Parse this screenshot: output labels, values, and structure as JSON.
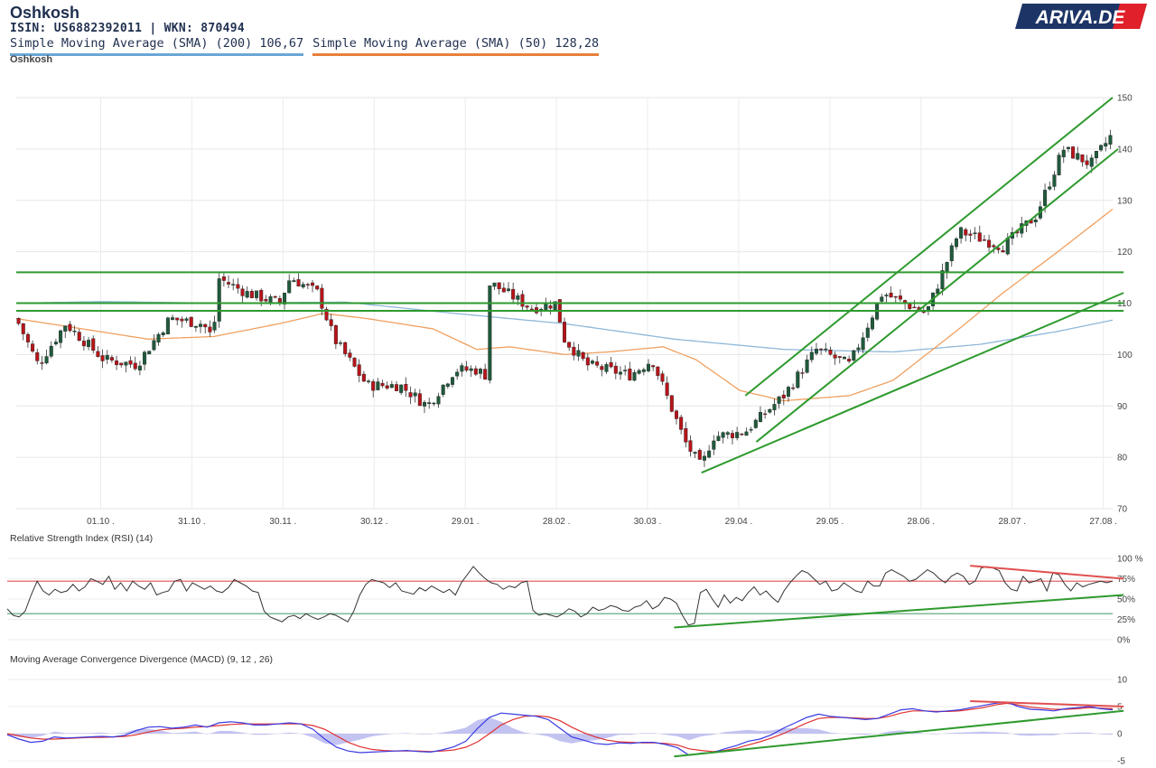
{
  "header": {
    "title": "Oshkosh",
    "ids": "ISIN: US6882392011  | WKN: 870494",
    "sma200_label": "Simple Moving Average (SMA) (200) 106,67",
    "sma50_label": "Simple Moving Average (SMA) (50) 128,28",
    "subtitle": "Oshkosh",
    "logo_text": "ARIVA.DE"
  },
  "colors": {
    "up": "#1f5a3c",
    "down": "#b8141a",
    "sma200": "#8fb8d9",
    "sma50": "#f0a060",
    "trend": "#2e9a2e",
    "rsi_upper": "#e05050",
    "rsi_lower": "#50a070",
    "macd": "#3a3ae0",
    "signal": "#e03030",
    "hist": "#b8b8f0",
    "logo_bg": "#1d3566",
    "logo_accent": "#e0202a"
  },
  "rsi": {
    "label": "Relative Strength Index (RSI) (14)"
  },
  "macd": {
    "label": "Moving Average Convergence Divergence (MACD) (9, 12 , 26)"
  },
  "chart_data": [
    {
      "type": "candlestick",
      "title": "Oshkosh",
      "x_tick_labels": [
        "01.10 .",
        "31.10 .",
        "30.11 .",
        "30.12 .",
        "29.01 .",
        "28.02 .",
        "30.03 .",
        "29.04 .",
        "29.05 .",
        "28.06 .",
        "28.07 .",
        "27.08 ."
      ],
      "y_ticks": [
        70,
        80,
        90,
        100,
        110,
        120,
        130,
        140,
        150
      ],
      "ylim": [
        70,
        150
      ],
      "grid": true,
      "price_path": [
        {
          "t": 0,
          "p": 107
        },
        {
          "t": 0.02,
          "p": 98
        },
        {
          "t": 0.045,
          "p": 106
        },
        {
          "t": 0.08,
          "p": 99
        },
        {
          "t": 0.11,
          "p": 98
        },
        {
          "t": 0.14,
          "p": 107
        },
        {
          "t": 0.17,
          "p": 106
        },
        {
          "t": 0.18,
          "p": 103
        },
        {
          "t": 0.183,
          "p": 115
        },
        {
          "t": 0.21,
          "p": 112
        },
        {
          "t": 0.24,
          "p": 110
        },
        {
          "t": 0.25,
          "p": 115
        },
        {
          "t": 0.275,
          "p": 112
        },
        {
          "t": 0.29,
          "p": 103
        },
        {
          "t": 0.32,
          "p": 94
        },
        {
          "t": 0.35,
          "p": 94
        },
        {
          "t": 0.375,
          "p": 90
        },
        {
          "t": 0.4,
          "p": 97
        },
        {
          "t": 0.42,
          "p": 97
        },
        {
          "t": 0.428,
          "p": 96
        },
        {
          "t": 0.432,
          "p": 114
        },
        {
          "t": 0.47,
          "p": 109
        },
        {
          "t": 0.492,
          "p": 110
        },
        {
          "t": 0.5,
          "p": 103
        },
        {
          "t": 0.52,
          "p": 98
        },
        {
          "t": 0.56,
          "p": 96
        },
        {
          "t": 0.58,
          "p": 99
        },
        {
          "t": 0.61,
          "p": 83
        },
        {
          "t": 0.625,
          "p": 78
        },
        {
          "t": 0.635,
          "p": 84
        },
        {
          "t": 0.665,
          "p": 85
        },
        {
          "t": 0.7,
          "p": 92
        },
        {
          "t": 0.73,
          "p": 101
        },
        {
          "t": 0.76,
          "p": 98
        },
        {
          "t": 0.79,
          "p": 112
        },
        {
          "t": 0.83,
          "p": 108
        },
        {
          "t": 0.86,
          "p": 124
        },
        {
          "t": 0.9,
          "p": 121
        },
        {
          "t": 0.93,
          "p": 127
        },
        {
          "t": 0.955,
          "p": 140
        },
        {
          "t": 0.98,
          "p": 137
        },
        {
          "t": 1.0,
          "p": 143
        }
      ],
      "sma200": [
        {
          "t": 0,
          "p": 110
        },
        {
          "t": 0.08,
          "p": 110.3
        },
        {
          "t": 0.18,
          "p": 110
        },
        {
          "t": 0.3,
          "p": 110.2
        },
        {
          "t": 0.4,
          "p": 108
        },
        {
          "t": 0.5,
          "p": 106
        },
        {
          "t": 0.6,
          "p": 103
        },
        {
          "t": 0.7,
          "p": 101
        },
        {
          "t": 0.8,
          "p": 100.5
        },
        {
          "t": 0.88,
          "p": 102
        },
        {
          "t": 0.95,
          "p": 104.5
        },
        {
          "t": 1.0,
          "p": 106.7
        }
      ],
      "sma50": [
        {
          "t": 0,
          "p": 107
        },
        {
          "t": 0.06,
          "p": 105
        },
        {
          "t": 0.12,
          "p": 103
        },
        {
          "t": 0.18,
          "p": 103.5
        },
        {
          "t": 0.24,
          "p": 106
        },
        {
          "t": 0.28,
          "p": 108
        },
        {
          "t": 0.32,
          "p": 107
        },
        {
          "t": 0.38,
          "p": 105
        },
        {
          "t": 0.42,
          "p": 101
        },
        {
          "t": 0.45,
          "p": 101.5
        },
        {
          "t": 0.5,
          "p": 100
        },
        {
          "t": 0.54,
          "p": 100.5
        },
        {
          "t": 0.59,
          "p": 101.5
        },
        {
          "t": 0.62,
          "p": 99
        },
        {
          "t": 0.66,
          "p": 93
        },
        {
          "t": 0.7,
          "p": 91
        },
        {
          "t": 0.76,
          "p": 92
        },
        {
          "t": 0.8,
          "p": 95
        },
        {
          "t": 0.86,
          "p": 105
        },
        {
          "t": 0.9,
          "p": 112
        },
        {
          "t": 0.95,
          "p": 120
        },
        {
          "t": 1.0,
          "p": 128.3
        }
      ],
      "trendlines": [
        {
          "t1": 0.0,
          "p1": 116,
          "t2": 1.01,
          "p2": 116
        },
        {
          "t1": 0.0,
          "p1": 110,
          "t2": 1.01,
          "p2": 110
        },
        {
          "t1": 0.0,
          "p1": 108.5,
          "t2": 1.01,
          "p2": 108.5
        },
        {
          "t1": 0.625,
          "p1": 77,
          "t2": 1.01,
          "p2": 112
        },
        {
          "t1": 0.665,
          "p1": 92,
          "t2": 1.0,
          "p2": 150
        },
        {
          "t1": 0.675,
          "p1": 83,
          "t2": 1.005,
          "p2": 140
        }
      ]
    },
    {
      "type": "line",
      "title": "Relative Strength Index (RSI) (14)",
      "y_tick_labels": [
        "100 %",
        "75%",
        "50%",
        "25%",
        "0%"
      ],
      "y_ticks": [
        100,
        75,
        50,
        25,
        0
      ],
      "ylim": [
        0,
        100
      ],
      "levels": [
        72,
        32
      ],
      "series": [
        {
          "values": [
            38,
            30,
            28,
            35,
            55,
            72,
            60,
            55,
            62,
            58,
            60,
            68,
            60,
            65,
            75,
            72,
            68,
            78,
            62,
            70,
            60,
            72,
            66,
            62,
            70,
            55,
            58,
            60,
            72,
            74,
            60,
            70,
            66,
            62,
            66,
            60,
            58,
            64,
            74,
            70,
            66,
            60,
            58,
            35,
            28,
            25,
            22,
            28,
            30,
            26,
            32,
            28,
            25,
            28,
            32,
            30,
            26,
            22,
            35,
            55,
            68,
            74,
            72,
            70,
            64,
            70,
            60,
            58,
            56,
            64,
            60,
            66,
            62,
            58,
            62,
            55,
            70,
            80,
            90,
            82,
            75,
            70,
            68,
            62,
            66,
            64,
            70,
            72,
            36,
            30,
            32,
            30,
            28,
            32,
            38,
            35,
            28,
            32,
            40,
            36,
            38,
            42,
            40,
            36,
            35,
            40,
            42,
            48,
            38,
            42,
            52,
            50,
            45,
            30,
            18,
            20,
            58,
            62,
            50,
            40,
            55,
            45,
            52,
            48,
            58,
            65,
            55,
            60,
            52,
            46,
            60,
            70,
            78,
            85,
            82,
            75,
            68,
            72,
            60,
            62,
            70,
            65,
            60,
            58,
            72,
            66,
            66,
            82,
            86,
            82,
            78,
            72,
            74,
            80,
            86,
            82,
            75,
            70,
            78,
            82,
            78,
            68,
            72,
            88,
            90,
            88,
            85,
            70,
            62,
            60,
            78,
            70,
            72,
            75,
            60,
            82,
            80,
            68,
            60,
            70,
            65,
            68,
            70,
            72,
            70,
            72
          ]
        }
      ],
      "trendlines": [
        {
          "t1": 0.6,
          "v1": 15,
          "t2": 1.01,
          "v2": 55
        },
        {
          "t1": 0.87,
          "v1": 91,
          "t2": 1.01,
          "v2": 75
        }
      ]
    },
    {
      "type": "line",
      "title": "Moving Average Convergence Divergence (MACD) (9, 12 , 26)",
      "y_ticks": [
        10,
        5,
        0,
        -5
      ],
      "ylim": [
        -5,
        10
      ],
      "series": [
        {
          "name": "MACD",
          "values": [
            -0.2,
            -1.0,
            -1.6,
            -1.4,
            -0.6,
            -0.8,
            -0.7,
            -0.6,
            -0.5,
            -0.6,
            -0.3,
            0.6,
            1.2,
            1.3,
            1.0,
            1.2,
            1.6,
            1.2,
            2.0,
            2.2,
            2.0,
            1.6,
            1.6,
            1.8,
            2.0,
            1.8,
            0.8,
            -1.0,
            -2.5,
            -3.2,
            -3.5,
            -3.4,
            -3.3,
            -3.2,
            -3.1,
            -3.3,
            -3.4,
            -3.0,
            -2.4,
            -1.4,
            1.0,
            3.0,
            3.8,
            3.6,
            3.4,
            3.2,
            2.6,
            1.0,
            -0.6,
            -1.2,
            -1.8,
            -2.0,
            -1.7,
            -1.8,
            -1.6,
            -1.6,
            -2.0,
            -2.6,
            -4.0,
            -3.6,
            -3.5,
            -2.8,
            -2.2,
            -1.4,
            -1.0,
            -0.2,
            1.0,
            2.0,
            3.0,
            3.6,
            3.2,
            3.0,
            2.8,
            2.6,
            2.8,
            3.6,
            4.4,
            4.6,
            4.2,
            4.0,
            4.2,
            4.4,
            4.8,
            5.2,
            5.6,
            5.8,
            5.0,
            4.5,
            4.4,
            4.2,
            4.6,
            4.8,
            5.0,
            4.6,
            4.4
          ]
        },
        {
          "name": "Signal",
          "values": [
            0.0,
            -0.4,
            -0.8,
            -1.0,
            -1.0,
            -0.9,
            -0.8,
            -0.7,
            -0.7,
            -0.6,
            -0.5,
            -0.2,
            0.3,
            0.7,
            0.9,
            1.0,
            1.2,
            1.3,
            1.5,
            1.7,
            1.8,
            1.8,
            1.8,
            1.8,
            1.8,
            1.8,
            1.5,
            0.8,
            -0.4,
            -1.6,
            -2.4,
            -2.9,
            -3.1,
            -3.2,
            -3.2,
            -3.2,
            -3.3,
            -3.2,
            -3.0,
            -2.5,
            -1.5,
            0.0,
            1.6,
            2.6,
            3.2,
            3.3,
            3.1,
            2.4,
            1.2,
            0.2,
            -0.6,
            -1.2,
            -1.5,
            -1.6,
            -1.7,
            -1.7,
            -1.8,
            -2.1,
            -2.8,
            -3.1,
            -3.3,
            -3.1,
            -2.7,
            -2.1,
            -1.5,
            -0.8,
            0.0,
            1.0,
            2.0,
            2.8,
            3.0,
            3.0,
            2.9,
            2.8,
            2.8,
            3.2,
            3.8,
            4.2,
            4.2,
            4.1,
            4.1,
            4.2,
            4.5,
            4.8,
            5.3,
            5.6,
            5.3,
            4.9,
            4.7,
            4.5,
            4.5,
            4.6,
            4.8,
            4.7,
            4.6
          ]
        }
      ],
      "trendlines": [
        {
          "t1": 0.6,
          "v1": -4.2,
          "t2": 1.01,
          "v2": 4.2
        },
        {
          "t1": 0.87,
          "v1": 6.0,
          "t2": 1.01,
          "v2": 5.0
        }
      ]
    }
  ]
}
